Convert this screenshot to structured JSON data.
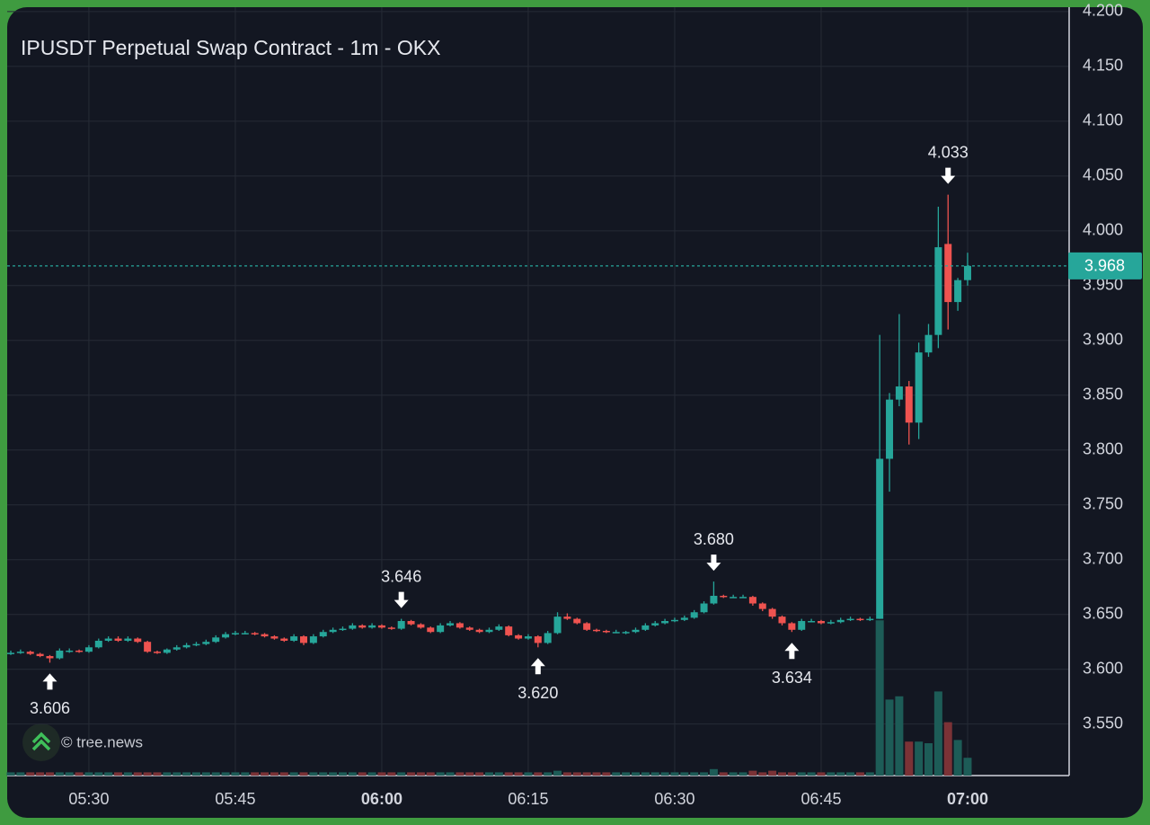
{
  "chart_data": {
    "type": "candlestick",
    "title": "IPUSDT Perpetual Swap Contract - 1m - OKX",
    "watermark": "© tree.news",
    "x": [
      "05:22",
      "05:23",
      "05:24",
      "05:25",
      "05:26",
      "05:27",
      "05:28",
      "05:29",
      "05:30",
      "05:31",
      "05:32",
      "05:33",
      "05:34",
      "05:35",
      "05:36",
      "05:37",
      "05:38",
      "05:39",
      "05:40",
      "05:41",
      "05:42",
      "05:43",
      "05:44",
      "05:45",
      "05:46",
      "05:47",
      "05:48",
      "05:49",
      "05:50",
      "05:51",
      "05:52",
      "05:53",
      "05:54",
      "05:55",
      "05:56",
      "05:57",
      "05:58",
      "05:59",
      "06:00",
      "06:01",
      "06:02",
      "06:03",
      "06:04",
      "06:05",
      "06:06",
      "06:07",
      "06:08",
      "06:09",
      "06:10",
      "06:11",
      "06:12",
      "06:13",
      "06:14",
      "06:15",
      "06:16",
      "06:17",
      "06:18",
      "06:19",
      "06:20",
      "06:21",
      "06:22",
      "06:23",
      "06:24",
      "06:25",
      "06:26",
      "06:27",
      "06:28",
      "06:29",
      "06:30",
      "06:31",
      "06:32",
      "06:33",
      "06:34",
      "06:35",
      "06:36",
      "06:37",
      "06:38",
      "06:39",
      "06:40",
      "06:41",
      "06:42",
      "06:43",
      "06:44",
      "06:45",
      "06:46",
      "06:47",
      "06:48",
      "06:49",
      "06:50",
      "06:51",
      "06:52",
      "06:53",
      "06:54",
      "06:55",
      "06:56",
      "06:57",
      "06:58",
      "06:59",
      "07:00"
    ],
    "ohlc": [
      [
        3.614,
        3.617,
        3.613,
        3.615
      ],
      [
        3.615,
        3.618,
        3.614,
        3.616
      ],
      [
        3.616,
        3.617,
        3.613,
        3.614
      ],
      [
        3.614,
        3.615,
        3.611,
        3.612
      ],
      [
        3.612,
        3.613,
        3.606,
        3.61
      ],
      [
        3.61,
        3.619,
        3.609,
        3.617
      ],
      [
        3.617,
        3.619,
        3.615,
        3.617
      ],
      [
        3.617,
        3.618,
        3.615,
        3.616
      ],
      [
        3.616,
        3.622,
        3.615,
        3.62
      ],
      [
        3.62,
        3.628,
        3.619,
        3.626
      ],
      [
        3.626,
        3.63,
        3.625,
        3.628
      ],
      [
        3.628,
        3.63,
        3.625,
        3.626
      ],
      [
        3.626,
        3.63,
        3.625,
        3.628
      ],
      [
        3.628,
        3.629,
        3.624,
        3.625
      ],
      [
        3.625,
        3.626,
        3.615,
        3.616
      ],
      [
        3.616,
        3.617,
        3.614,
        3.615
      ],
      [
        3.615,
        3.619,
        3.614,
        3.618
      ],
      [
        3.618,
        3.622,
        3.617,
        3.62
      ],
      [
        3.62,
        3.624,
        3.619,
        3.622
      ],
      [
        3.622,
        3.625,
        3.621,
        3.623
      ],
      [
        3.623,
        3.627,
        3.622,
        3.625
      ],
      [
        3.625,
        3.631,
        3.624,
        3.629
      ],
      [
        3.629,
        3.634,
        3.628,
        3.632
      ],
      [
        3.632,
        3.635,
        3.631,
        3.633
      ],
      [
        3.633,
        3.635,
        3.632,
        3.633
      ],
      [
        3.633,
        3.634,
        3.631,
        3.632
      ],
      [
        3.632,
        3.633,
        3.629,
        3.63
      ],
      [
        3.63,
        3.631,
        3.627,
        3.628
      ],
      [
        3.628,
        3.629,
        3.625,
        3.626
      ],
      [
        3.626,
        3.632,
        3.625,
        3.63
      ],
      [
        3.63,
        3.631,
        3.622,
        3.624
      ],
      [
        3.624,
        3.632,
        3.623,
        3.63
      ],
      [
        3.63,
        3.636,
        3.629,
        3.634
      ],
      [
        3.634,
        3.638,
        3.633,
        3.636
      ],
      [
        3.636,
        3.639,
        3.635,
        3.637
      ],
      [
        3.637,
        3.642,
        3.636,
        3.64
      ],
      [
        3.64,
        3.641,
        3.637,
        3.638
      ],
      [
        3.638,
        3.642,
        3.637,
        3.64
      ],
      [
        3.64,
        3.641,
        3.637,
        3.638
      ],
      [
        3.638,
        3.639,
        3.636,
        3.637
      ],
      [
        3.637,
        3.646,
        3.636,
        3.644
      ],
      [
        3.644,
        3.645,
        3.64,
        3.641
      ],
      [
        3.641,
        3.642,
        3.637,
        3.638
      ],
      [
        3.638,
        3.639,
        3.633,
        3.634
      ],
      [
        3.634,
        3.642,
        3.633,
        3.64
      ],
      [
        3.64,
        3.644,
        3.639,
        3.642
      ],
      [
        3.642,
        3.643,
        3.637,
        3.638
      ],
      [
        3.638,
        3.639,
        3.635,
        3.636
      ],
      [
        3.636,
        3.637,
        3.633,
        3.634
      ],
      [
        3.634,
        3.638,
        3.633,
        3.636
      ],
      [
        3.636,
        3.641,
        3.635,
        3.639
      ],
      [
        3.639,
        3.64,
        3.63,
        3.631
      ],
      [
        3.631,
        3.632,
        3.627,
        3.628
      ],
      [
        3.628,
        3.632,
        3.627,
        3.63
      ],
      [
        3.63,
        3.631,
        3.62,
        3.624
      ],
      [
        3.624,
        3.635,
        3.623,
        3.633
      ],
      [
        3.633,
        3.652,
        3.632,
        3.648
      ],
      [
        3.648,
        3.651,
        3.645,
        3.646
      ],
      [
        3.646,
        3.647,
        3.641,
        3.642
      ],
      [
        3.642,
        3.643,
        3.635,
        3.636
      ],
      [
        3.636,
        3.637,
        3.634,
        3.635
      ],
      [
        3.635,
        3.636,
        3.633,
        3.634
      ],
      [
        3.634,
        3.636,
        3.633,
        3.634
      ],
      [
        3.634,
        3.635,
        3.632,
        3.634
      ],
      [
        3.634,
        3.638,
        3.633,
        3.636
      ],
      [
        3.636,
        3.642,
        3.635,
        3.64
      ],
      [
        3.64,
        3.644,
        3.639,
        3.642
      ],
      [
        3.642,
        3.646,
        3.641,
        3.644
      ],
      [
        3.644,
        3.647,
        3.643,
        3.645
      ],
      [
        3.645,
        3.649,
        3.644,
        3.647
      ],
      [
        3.647,
        3.654,
        3.646,
        3.652
      ],
      [
        3.652,
        3.662,
        3.651,
        3.66
      ],
      [
        3.66,
        3.68,
        3.659,
        3.667
      ],
      [
        3.667,
        3.668,
        3.665,
        3.666
      ],
      [
        3.666,
        3.668,
        3.665,
        3.666
      ],
      [
        3.666,
        3.668,
        3.665,
        3.666
      ],
      [
        3.666,
        3.667,
        3.658,
        3.66
      ],
      [
        3.66,
        3.661,
        3.653,
        3.655
      ],
      [
        3.655,
        3.656,
        3.646,
        3.648
      ],
      [
        3.648,
        3.649,
        3.64,
        3.642
      ],
      [
        3.642,
        3.643,
        3.634,
        3.636
      ],
      [
        3.636,
        3.646,
        3.635,
        3.644
      ],
      [
        3.644,
        3.646,
        3.643,
        3.644
      ],
      [
        3.644,
        3.645,
        3.641,
        3.642
      ],
      [
        3.642,
        3.645,
        3.641,
        3.643
      ],
      [
        3.643,
        3.647,
        3.642,
        3.645
      ],
      [
        3.645,
        3.648,
        3.644,
        3.646
      ],
      [
        3.646,
        3.647,
        3.644,
        3.645
      ],
      [
        3.645,
        3.648,
        3.644,
        3.646
      ],
      [
        3.646,
        3.905,
        3.646,
        3.792
      ],
      [
        3.792,
        3.852,
        3.762,
        3.846
      ],
      [
        3.846,
        3.924,
        3.84,
        3.858
      ],
      [
        3.858,
        3.863,
        3.805,
        3.825
      ],
      [
        3.825,
        3.898,
        3.81,
        3.889
      ],
      [
        3.889,
        3.915,
        3.885,
        3.905
      ],
      [
        3.905,
        4.022,
        3.893,
        3.985
      ],
      [
        3.988,
        4.033,
        3.91,
        3.935
      ],
      [
        3.935,
        3.957,
        3.927,
        3.955
      ],
      [
        3.955,
        3.98,
        3.95,
        3.968
      ]
    ],
    "volume": [
      2,
      2,
      2,
      2,
      2,
      2,
      2,
      2,
      2,
      2,
      2,
      2,
      2,
      2,
      2,
      2,
      2,
      2,
      2,
      2,
      2,
      2,
      2,
      2,
      2,
      2,
      2,
      2,
      2,
      2,
      2,
      2,
      2,
      2,
      2,
      2,
      2,
      2,
      2,
      2,
      2,
      2,
      2,
      2,
      2,
      2,
      2,
      2,
      2,
      2,
      2,
      2,
      2,
      2,
      2,
      2,
      3,
      2,
      2,
      2,
      2,
      2,
      2,
      2,
      2,
      2,
      2,
      2,
      2,
      2,
      2,
      2,
      4,
      2,
      2,
      2,
      3,
      2,
      3,
      2,
      2,
      2,
      2,
      2,
      2,
      2,
      2,
      2,
      2,
      96,
      47,
      49,
      21,
      21,
      20,
      52,
      33,
      22,
      11
    ],
    "vlim": [
      0,
      100
    ],
    "ylim": [
      3.503,
      4.204
    ],
    "yticks": [
      {
        "value": 3.55,
        "label": "3.550"
      },
      {
        "value": 3.6,
        "label": "3.600"
      },
      {
        "value": 3.65,
        "label": "3.650"
      },
      {
        "value": 3.7,
        "label": "3.700"
      },
      {
        "value": 3.75,
        "label": "3.750"
      },
      {
        "value": 3.8,
        "label": "3.800"
      },
      {
        "value": 3.85,
        "label": "3.850"
      },
      {
        "value": 3.9,
        "label": "3.900"
      },
      {
        "value": 3.95,
        "label": "3.950"
      },
      {
        "value": 4.0,
        "label": "4.000"
      },
      {
        "value": 4.05,
        "label": "4.050"
      },
      {
        "value": 4.1,
        "label": "4.100"
      },
      {
        "value": 4.15,
        "label": "4.150"
      },
      {
        "value": 4.2,
        "label": "4.200"
      }
    ],
    "xticks": [
      "05:30",
      "05:45",
      "06:00",
      "06:15",
      "06:30",
      "06:45",
      "07:00"
    ],
    "annotations": [
      {
        "value": 3.606,
        "label": "3.606",
        "x": "05:26",
        "arrow": "up"
      },
      {
        "value": 3.646,
        "label": "3.646",
        "x": "06:02",
        "arrow": "down"
      },
      {
        "value": 3.62,
        "label": "3.620",
        "x": "06:16",
        "arrow": "up"
      },
      {
        "value": 3.68,
        "label": "3.680",
        "x": "06:34",
        "arrow": "down"
      },
      {
        "value": 3.634,
        "label": "3.634",
        "x": "06:42",
        "arrow": "up"
      },
      {
        "value": 4.033,
        "label": "4.033",
        "x": "06:58",
        "arrow": "down"
      }
    ],
    "last_price": {
      "value": 3.968,
      "label": "3.968"
    },
    "colors": {
      "up": "#26a69a",
      "down": "#ef5350",
      "volume_up": "#1d5c57",
      "volume_down": "#7b3236"
    },
    "grid": true
  }
}
